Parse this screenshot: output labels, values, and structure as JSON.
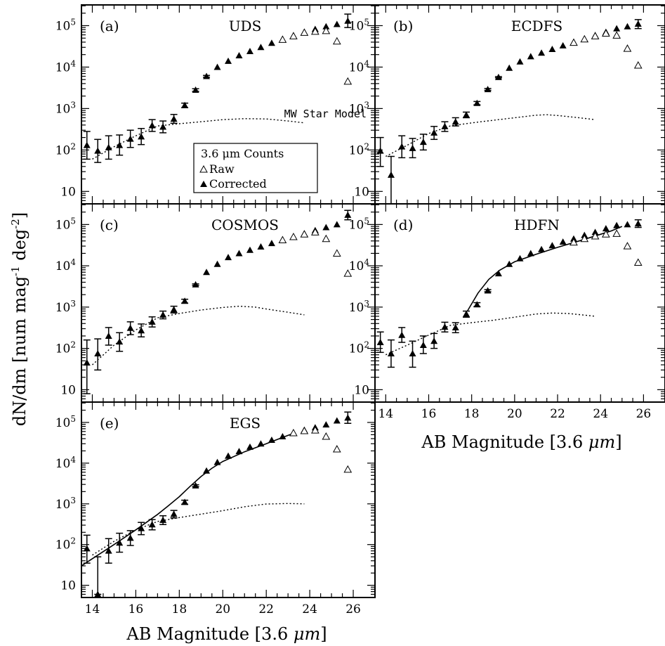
{
  "figure": {
    "ylabel_main": "dN/dm [num mag",
    "ylabel_sup1": "-1",
    "ylabel_mid": " deg",
    "ylabel_sup2": "-2",
    "ylabel_end": "]",
    "xlabel_main": "AB Magnitude [3.6 ",
    "xlabel_mu": "μm",
    "xlabel_end": "]",
    "legend": {
      "title": "3.6 μm Counts",
      "raw_label": "Raw",
      "corrected_label": "Corrected"
    },
    "model_label": "MW Star Model",
    "xtick_labels": [
      "14",
      "16",
      "18",
      "20",
      "22",
      "24",
      "26"
    ],
    "ytick_labels": [
      "10",
      "10",
      "10",
      "10",
      "10"
    ],
    "ytick_exponents": [
      "",
      "2",
      "3",
      "4",
      "5"
    ],
    "colors": {
      "ink": "#000000",
      "background": "#ffffff"
    }
  },
  "chart_data": [
    {
      "type": "scatter",
      "tag": "(a)",
      "name": "UDS",
      "xlim": [
        13.5,
        27
      ],
      "ylim_log10": [
        0.7,
        5.5
      ],
      "show_legend": true,
      "show_model_label": true,
      "corrected": [
        {
          "x": 13.75,
          "y": 130,
          "lo": 60,
          "hi": 280
        },
        {
          "x": 14.25,
          "y": 95,
          "lo": 50,
          "hi": 180
        },
        {
          "x": 14.75,
          "y": 115,
          "lo": 60,
          "hi": 220
        },
        {
          "x": 15.25,
          "y": 130,
          "lo": 75,
          "hi": 230
        },
        {
          "x": 15.75,
          "y": 185,
          "lo": 115,
          "hi": 300
        },
        {
          "x": 16.25,
          "y": 210,
          "lo": 135,
          "hi": 330
        },
        {
          "x": 16.75,
          "y": 390,
          "lo": 280,
          "hi": 540
        },
        {
          "x": 17.25,
          "y": 360,
          "lo": 260,
          "hi": 500
        },
        {
          "x": 17.75,
          "y": 560,
          "lo": 440,
          "hi": 720
        },
        {
          "x": 18.25,
          "y": 1200,
          "lo": 1050,
          "hi": 1350
        },
        {
          "x": 18.75,
          "y": 2800,
          "lo": 2600,
          "hi": 3000
        },
        {
          "x": 19.25,
          "y": 6000,
          "lo": 5700,
          "hi": 6300
        },
        {
          "x": 19.75,
          "y": 10000
        },
        {
          "x": 20.25,
          "y": 14000
        },
        {
          "x": 20.75,
          "y": 19000
        },
        {
          "x": 21.25,
          "y": 24000
        },
        {
          "x": 21.75,
          "y": 30000
        },
        {
          "x": 22.25,
          "y": 38000
        },
        {
          "x": 22.75,
          "y": 47000
        },
        {
          "x": 23.25,
          "y": 57000
        },
        {
          "x": 23.75,
          "y": 70000
        },
        {
          "x": 24.25,
          "y": 82000
        },
        {
          "x": 24.75,
          "y": 95000
        },
        {
          "x": 25.25,
          "y": 108000
        },
        {
          "x": 25.75,
          "y": 130000,
          "lo": 90000,
          "hi": 190000
        }
      ],
      "raw": [
        {
          "x": 22.75,
          "y": 46000
        },
        {
          "x": 23.25,
          "y": 56000
        },
        {
          "x": 23.75,
          "y": 68000
        },
        {
          "x": 24.25,
          "y": 72000
        },
        {
          "x": 24.75,
          "y": 75000
        },
        {
          "x": 25.25,
          "y": 42000
        },
        {
          "x": 25.75,
          "y": 4500
        }
      ],
      "model": [
        [
          14,
          60
        ],
        [
          15,
          120
        ],
        [
          16,
          220
        ],
        [
          17,
          380
        ],
        [
          18,
          430
        ],
        [
          19,
          480
        ],
        [
          20,
          540
        ],
        [
          21,
          570
        ],
        [
          22,
          560
        ],
        [
          23,
          500
        ],
        [
          23.75,
          450
        ]
      ],
      "fit": []
    },
    {
      "type": "scatter",
      "tag": "(b)",
      "name": "ECDFS",
      "xlim": [
        13.5,
        27
      ],
      "ylim_log10": [
        0.7,
        5.5
      ],
      "show_legend": false,
      "show_model_label": false,
      "corrected": [
        {
          "x": 13.75,
          "y": 95,
          "lo": 40,
          "hi": 200
        },
        {
          "x": 14.25,
          "y": 25,
          "lo": 4,
          "hi": 70
        },
        {
          "x": 14.75,
          "y": 120,
          "lo": 65,
          "hi": 220
        },
        {
          "x": 15.25,
          "y": 110,
          "lo": 65,
          "hi": 190
        },
        {
          "x": 15.75,
          "y": 155,
          "lo": 100,
          "hi": 240
        },
        {
          "x": 16.25,
          "y": 260,
          "lo": 180,
          "hi": 370
        },
        {
          "x": 16.75,
          "y": 370,
          "lo": 280,
          "hi": 480
        },
        {
          "x": 17.25,
          "y": 480,
          "lo": 380,
          "hi": 600
        },
        {
          "x": 17.75,
          "y": 700,
          "lo": 600,
          "hi": 820
        },
        {
          "x": 18.25,
          "y": 1350,
          "lo": 1230,
          "hi": 1480
        },
        {
          "x": 18.75,
          "y": 2900,
          "lo": 2750,
          "hi": 3050
        },
        {
          "x": 19.25,
          "y": 5700,
          "lo": 5500,
          "hi": 5900
        },
        {
          "x": 19.75,
          "y": 9500
        },
        {
          "x": 20.25,
          "y": 13500
        },
        {
          "x": 20.75,
          "y": 18000
        },
        {
          "x": 21.25,
          "y": 22000
        },
        {
          "x": 21.75,
          "y": 27000
        },
        {
          "x": 22.25,
          "y": 33000
        },
        {
          "x": 22.75,
          "y": 40000
        },
        {
          "x": 23.25,
          "y": 48000
        },
        {
          "x": 23.75,
          "y": 58000
        },
        {
          "x": 24.25,
          "y": 70000
        },
        {
          "x": 24.75,
          "y": 85000
        },
        {
          "x": 25.25,
          "y": 95000
        },
        {
          "x": 25.75,
          "y": 110000,
          "lo": 85000,
          "hi": 140000
        }
      ],
      "raw": [
        {
          "x": 22.75,
          "y": 39000
        },
        {
          "x": 23.25,
          "y": 47000
        },
        {
          "x": 23.75,
          "y": 56000
        },
        {
          "x": 24.25,
          "y": 65000
        },
        {
          "x": 24.75,
          "y": 58000
        },
        {
          "x": 25.25,
          "y": 28000
        },
        {
          "x": 25.75,
          "y": 11000
        }
      ],
      "model": [
        [
          14,
          70
        ],
        [
          15,
          130
        ],
        [
          16,
          250
        ],
        [
          17,
          380
        ],
        [
          18,
          450
        ],
        [
          19,
          520
        ],
        [
          20,
          600
        ],
        [
          21,
          690
        ],
        [
          21.5,
          710
        ],
        [
          22,
          680
        ],
        [
          23,
          600
        ],
        [
          23.75,
          540
        ]
      ],
      "fit": []
    },
    {
      "type": "scatter",
      "tag": "(c)",
      "name": "COSMOS",
      "xlim": [
        13.5,
        27
      ],
      "ylim_log10": [
        0.7,
        5.5
      ],
      "show_legend": false,
      "show_model_label": false,
      "corrected": [
        {
          "x": 13.75,
          "y": 45,
          "lo": 8,
          "hi": 160
        },
        {
          "x": 14.25,
          "y": 75,
          "lo": 30,
          "hi": 170
        },
        {
          "x": 14.75,
          "y": 200,
          "lo": 120,
          "hi": 320
        },
        {
          "x": 15.25,
          "y": 145,
          "lo": 85,
          "hi": 240
        },
        {
          "x": 15.75,
          "y": 310,
          "lo": 215,
          "hi": 440
        },
        {
          "x": 16.25,
          "y": 270,
          "lo": 190,
          "hi": 390
        },
        {
          "x": 16.75,
          "y": 440,
          "lo": 330,
          "hi": 580
        },
        {
          "x": 17.25,
          "y": 650,
          "lo": 520,
          "hi": 800
        },
        {
          "x": 17.75,
          "y": 870,
          "lo": 720,
          "hi": 1050
        },
        {
          "x": 18.25,
          "y": 1400,
          "lo": 1250,
          "hi": 1550
        },
        {
          "x": 18.75,
          "y": 3500,
          "lo": 3350,
          "hi": 3650
        },
        {
          "x": 19.25,
          "y": 7000
        },
        {
          "x": 19.75,
          "y": 11000
        },
        {
          "x": 20.25,
          "y": 16000
        },
        {
          "x": 20.75,
          "y": 20000
        },
        {
          "x": 21.25,
          "y": 24000
        },
        {
          "x": 21.75,
          "y": 29000
        },
        {
          "x": 22.25,
          "y": 35000
        },
        {
          "x": 22.75,
          "y": 42000
        },
        {
          "x": 23.25,
          "y": 50000
        },
        {
          "x": 23.75,
          "y": 60000
        },
        {
          "x": 24.25,
          "y": 72000
        },
        {
          "x": 24.75,
          "y": 85000
        },
        {
          "x": 25.25,
          "y": 100000
        },
        {
          "x": 25.75,
          "y": 170000,
          "lo": 130000,
          "hi": 220000
        }
      ],
      "raw": [
        {
          "x": 22.75,
          "y": 42000
        },
        {
          "x": 23.25,
          "y": 50000
        },
        {
          "x": 23.75,
          "y": 58000
        },
        {
          "x": 24.25,
          "y": 65000
        },
        {
          "x": 24.75,
          "y": 45000
        },
        {
          "x": 25.25,
          "y": 20000
        },
        {
          "x": 25.75,
          "y": 6500
        }
      ],
      "model": [
        [
          14,
          40
        ],
        [
          15,
          120
        ],
        [
          16,
          280
        ],
        [
          17,
          550
        ],
        [
          18,
          700
        ],
        [
          19,
          850
        ],
        [
          20,
          980
        ],
        [
          20.75,
          1050
        ],
        [
          21.5,
          1000
        ],
        [
          22,
          900
        ],
        [
          23,
          750
        ],
        [
          23.75,
          650
        ]
      ],
      "fit": []
    },
    {
      "type": "scatter",
      "tag": "(d)",
      "name": "HDFN",
      "xlim": [
        13.5,
        27
      ],
      "ylim_log10": [
        0.7,
        5.5
      ],
      "show_legend": false,
      "show_model_label": false,
      "corrected": [
        {
          "x": 13.75,
          "y": 140,
          "lo": 80,
          "hi": 250
        },
        {
          "x": 14.25,
          "y": 75,
          "lo": 35,
          "hi": 160
        },
        {
          "x": 14.75,
          "y": 210,
          "lo": 140,
          "hi": 320
        },
        {
          "x": 15.25,
          "y": 75,
          "lo": 35,
          "hi": 150
        },
        {
          "x": 15.75,
          "y": 120,
          "lo": 75,
          "hi": 200
        },
        {
          "x": 16.25,
          "y": 150,
          "lo": 100,
          "hi": 230
        },
        {
          "x": 16.75,
          "y": 330,
          "lo": 250,
          "hi": 430
        },
        {
          "x": 17.25,
          "y": 320,
          "lo": 240,
          "hi": 420
        },
        {
          "x": 17.75,
          "y": 680,
          "lo": 570,
          "hi": 800
        },
        {
          "x": 18.25,
          "y": 1150,
          "lo": 1030,
          "hi": 1280
        },
        {
          "x": 18.75,
          "y": 2500,
          "lo": 2350,
          "hi": 2650
        },
        {
          "x": 19.25,
          "y": 6500
        },
        {
          "x": 19.75,
          "y": 11000
        },
        {
          "x": 20.25,
          "y": 15000
        },
        {
          "x": 20.75,
          "y": 20000
        },
        {
          "x": 21.25,
          "y": 25000
        },
        {
          "x": 21.75,
          "y": 31000
        },
        {
          "x": 22.25,
          "y": 38000
        },
        {
          "x": 22.75,
          "y": 45000
        },
        {
          "x": 23.25,
          "y": 55000
        },
        {
          "x": 23.75,
          "y": 65000
        },
        {
          "x": 24.25,
          "y": 80000
        },
        {
          "x": 24.75,
          "y": 95000
        },
        {
          "x": 25.25,
          "y": 100000
        },
        {
          "x": 25.75,
          "y": 105000,
          "lo": 85000,
          "hi": 130000
        }
      ],
      "raw": [
        {
          "x": 22.75,
          "y": 37000
        },
        {
          "x": 23.25,
          "y": 45000
        },
        {
          "x": 23.75,
          "y": 52000
        },
        {
          "x": 24.25,
          "y": 58000
        },
        {
          "x": 24.75,
          "y": 60000
        },
        {
          "x": 25.25,
          "y": 30000
        },
        {
          "x": 25.75,
          "y": 12000
        }
      ],
      "model": [
        [
          14,
          70
        ],
        [
          15,
          120
        ],
        [
          16,
          210
        ],
        [
          17,
          360
        ],
        [
          18,
          420
        ],
        [
          19,
          480
        ],
        [
          20,
          570
        ],
        [
          21,
          680
        ],
        [
          21.75,
          720
        ],
        [
          22.5,
          700
        ],
        [
          23,
          660
        ],
        [
          23.75,
          600
        ]
      ],
      "fit": [
        [
          17.8,
          800
        ],
        [
          18.3,
          2200
        ],
        [
          18.8,
          4700
        ],
        [
          19.3,
          7800
        ],
        [
          20,
          12500
        ],
        [
          21,
          19000
        ],
        [
          22,
          28000
        ],
        [
          23,
          40000
        ],
        [
          24,
          58000
        ],
        [
          24.5,
          70000
        ],
        [
          25,
          90000
        ]
      ]
    },
    {
      "type": "scatter",
      "tag": "(e)",
      "name": "EGS",
      "xlim": [
        13.5,
        27
      ],
      "ylim_log10": [
        0.7,
        5.5
      ],
      "show_legend": false,
      "show_model_label": false,
      "corrected": [
        {
          "x": 13.75,
          "y": 80,
          "lo": 35,
          "hi": 170
        },
        {
          "x": 14.25,
          "y": 6,
          "lo": 6,
          "hi": 50
        },
        {
          "x": 14.75,
          "y": 70,
          "lo": 35,
          "hi": 140
        },
        {
          "x": 15.25,
          "y": 110,
          "lo": 65,
          "hi": 190
        },
        {
          "x": 15.75,
          "y": 145,
          "lo": 95,
          "hi": 220
        },
        {
          "x": 16.25,
          "y": 250,
          "lo": 175,
          "hi": 350
        },
        {
          "x": 16.75,
          "y": 310,
          "lo": 230,
          "hi": 410
        },
        {
          "x": 17.25,
          "y": 400,
          "lo": 310,
          "hi": 510
        },
        {
          "x": 17.75,
          "y": 560,
          "lo": 450,
          "hi": 690
        },
        {
          "x": 18.25,
          "y": 1100,
          "lo": 980,
          "hi": 1230
        },
        {
          "x": 18.75,
          "y": 2800,
          "lo": 2650,
          "hi": 2950
        },
        {
          "x": 19.25,
          "y": 6500
        },
        {
          "x": 19.75,
          "y": 10500
        },
        {
          "x": 20.25,
          "y": 15000
        },
        {
          "x": 20.75,
          "y": 19500
        },
        {
          "x": 21.25,
          "y": 25000
        },
        {
          "x": 21.75,
          "y": 30000
        },
        {
          "x": 22.25,
          "y": 37000
        },
        {
          "x": 22.75,
          "y": 45000
        },
        {
          "x": 23.25,
          "y": 55000
        },
        {
          "x": 23.75,
          "y": 65000
        },
        {
          "x": 24.25,
          "y": 75000
        },
        {
          "x": 24.75,
          "y": 88000
        },
        {
          "x": 25.25,
          "y": 110000
        },
        {
          "x": 25.75,
          "y": 130000,
          "lo": 95000,
          "hi": 180000
        }
      ],
      "raw": [
        {
          "x": 23.25,
          "y": 55000
        },
        {
          "x": 23.75,
          "y": 62000
        },
        {
          "x": 24.25,
          "y": 64000
        },
        {
          "x": 24.75,
          "y": 45000
        },
        {
          "x": 25.25,
          "y": 22000
        },
        {
          "x": 25.75,
          "y": 7000
        }
      ],
      "model": [
        [
          14,
          55
        ],
        [
          15,
          120
        ],
        [
          16,
          230
        ],
        [
          17,
          370
        ],
        [
          18,
          460
        ],
        [
          19,
          560
        ],
        [
          20,
          680
        ],
        [
          21,
          850
        ],
        [
          22,
          990
        ],
        [
          23,
          1020
        ],
        [
          23.75,
          1000
        ]
      ],
      "fit": [
        [
          13.5,
          30
        ],
        [
          14,
          45
        ],
        [
          15,
          100
        ],
        [
          16,
          230
        ],
        [
          17,
          550
        ],
        [
          17.5,
          900
        ],
        [
          18,
          1500
        ],
        [
          18.5,
          2700
        ],
        [
          19,
          4700
        ],
        [
          19.5,
          7500
        ],
        [
          20,
          11000
        ],
        [
          21,
          19000
        ],
        [
          22,
          30000
        ],
        [
          23,
          48000
        ],
        [
          23.3,
          55000
        ]
      ]
    }
  ]
}
